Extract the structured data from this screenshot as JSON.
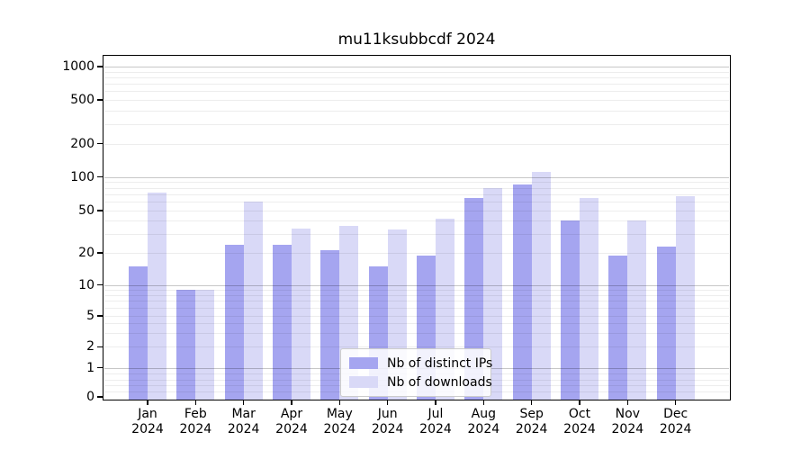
{
  "title": "mu11ksubbcdf 2024",
  "chart_data": {
    "type": "bar",
    "title": "mu11ksubbcdf 2024",
    "categories": [
      "Jan 2024",
      "Feb 2024",
      "Mar 2024",
      "Apr 2024",
      "May 2024",
      "Jun 2024",
      "Jul 2024",
      "Aug 2024",
      "Sep 2024",
      "Oct 2024",
      "Nov 2024",
      "Dec 2024"
    ],
    "category_line1": [
      "Jan",
      "Feb",
      "Mar",
      "Apr",
      "May",
      "Jun",
      "Jul",
      "Aug",
      "Sep",
      "Oct",
      "Nov",
      "Dec"
    ],
    "category_line2": "2024",
    "series": [
      {
        "name": "Nb of distinct IPs",
        "color": "#a5a5f0",
        "values": [
          15,
          9,
          24,
          24,
          21,
          15,
          19,
          65,
          85,
          40,
          19,
          23
        ]
      },
      {
        "name": "Nb of downloads",
        "color": "#d9d9f7",
        "values": [
          73,
          9,
          60,
          34,
          36,
          33,
          42,
          80,
          110,
          65,
          40,
          67
        ]
      }
    ],
    "yscale": "asinh",
    "yticks": [
      0,
      1,
      2,
      5,
      10,
      20,
      50,
      100,
      200,
      500,
      1000
    ],
    "ylim": [
      0,
      1100
    ],
    "grid": true,
    "legend_position": "lower center"
  }
}
